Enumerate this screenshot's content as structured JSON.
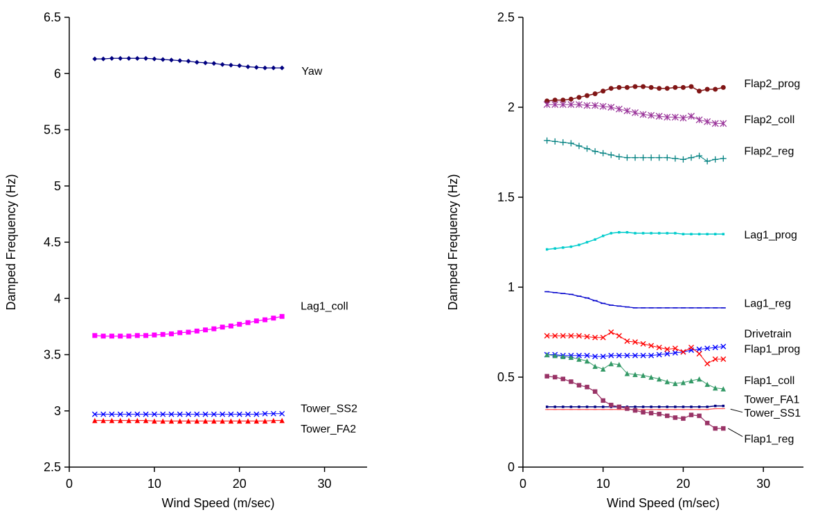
{
  "chart_data": [
    {
      "type": "scatter",
      "title": "",
      "xlabel": "Wind Speed (m/sec)",
      "ylabel": "Damped Frequency (Hz)",
      "xlim": [
        0,
        35
      ],
      "ylim": [
        2.5,
        6.5
      ],
      "grid": false,
      "legend": "inline-labels",
      "xticks": [
        0,
        10,
        20,
        30
      ],
      "xtick_labels": [
        "0",
        "10",
        "20",
        "30"
      ],
      "yticks": [
        2.5,
        3,
        3.5,
        4,
        4.5,
        5,
        5.5,
        6,
        6.5
      ],
      "ytick_labels": [
        "2.5",
        "3",
        "3.5",
        "4",
        "4.5",
        "5",
        "5.5",
        "6",
        "6.5"
      ],
      "x": [
        3,
        4,
        5,
        6,
        7,
        8,
        9,
        10,
        11,
        12,
        13,
        14,
        15,
        16,
        17,
        18,
        19,
        20,
        21,
        22,
        23,
        24,
        25
      ],
      "series": [
        {
          "name": "Yaw",
          "color": "#000080",
          "marker": "diamond",
          "msize": 7,
          "lwidth": 1.25,
          "values": [
            6.13,
            6.13,
            6.135,
            6.135,
            6.135,
            6.135,
            6.135,
            6.13,
            6.125,
            6.12,
            6.115,
            6.11,
            6.1,
            6.095,
            6.09,
            6.08,
            6.075,
            6.07,
            6.06,
            6.055,
            6.05,
            6.05,
            6.05
          ],
          "label": {
            "text": "Yaw",
            "x": 27.3,
            "y": 6.02
          }
        },
        {
          "name": "Lag1_coll",
          "color": "#FF00FF",
          "marker": "square",
          "msize": 7,
          "lwidth": 1.25,
          "values": [
            3.67,
            3.665,
            3.665,
            3.665,
            3.665,
            3.67,
            3.67,
            3.675,
            3.68,
            3.685,
            3.695,
            3.7,
            3.71,
            3.72,
            3.73,
            3.745,
            3.755,
            3.77,
            3.785,
            3.8,
            3.81,
            3.825,
            3.84
          ],
          "label": {
            "text": "Lag1_coll",
            "x": 27.2,
            "y": 3.93
          }
        },
        {
          "name": "Tower_SS2",
          "color": "#0000FF",
          "marker": "x",
          "msize": 7,
          "mstroke": 1.4,
          "lwidth": 1,
          "values": [
            2.97,
            2.97,
            2.97,
            2.97,
            2.97,
            2.97,
            2.97,
            2.97,
            2.97,
            2.97,
            2.97,
            2.97,
            2.97,
            2.97,
            2.97,
            2.97,
            2.97,
            2.97,
            2.97,
            2.97,
            2.975,
            2.975,
            2.975
          ],
          "label": {
            "text": "Tower_SS2",
            "x": 27.2,
            "y": 3.02
          }
        },
        {
          "name": "Tower_FA2",
          "color": "#FF0000",
          "marker": "triangle",
          "msize": 7.5,
          "lwidth": 1,
          "values": [
            2.915,
            2.915,
            2.915,
            2.915,
            2.915,
            2.915,
            2.915,
            2.91,
            2.91,
            2.91,
            2.91,
            2.91,
            2.91,
            2.91,
            2.91,
            2.91,
            2.91,
            2.91,
            2.91,
            2.91,
            2.91,
            2.915,
            2.915
          ],
          "label": {
            "text": "Tower_FA2",
            "x": 27.2,
            "y": 2.84
          }
        }
      ]
    },
    {
      "type": "scatter",
      "title": "",
      "xlabel": "Wind Speed (m/sec)",
      "ylabel": "Damped Frequency (Hz)",
      "xlim": [
        0,
        35
      ],
      "ylim": [
        0,
        2.5
      ],
      "grid": false,
      "legend": "inline-labels",
      "xticks": [
        0,
        10,
        20,
        30
      ],
      "xtick_labels": [
        "0",
        "10",
        "20",
        "30"
      ],
      "yticks": [
        0,
        0.5,
        1,
        1.5,
        2,
        2.5
      ],
      "ytick_labels": [
        "0",
        "0.5",
        "1",
        "1.5",
        "2",
        "2.5"
      ],
      "x": [
        3,
        4,
        5,
        6,
        7,
        8,
        9,
        10,
        11,
        12,
        13,
        14,
        15,
        16,
        17,
        18,
        19,
        20,
        21,
        22,
        23,
        24,
        25
      ],
      "series": [
        {
          "name": "Flap2_prog",
          "color": "#801515",
          "marker": "circle",
          "msize": 7,
          "lwidth": 1.5,
          "values": [
            2.035,
            2.04,
            2.04,
            2.045,
            2.055,
            2.065,
            2.075,
            2.09,
            2.105,
            2.11,
            2.11,
            2.115,
            2.115,
            2.11,
            2.105,
            2.105,
            2.11,
            2.11,
            2.115,
            2.09,
            2.1,
            2.1,
            2.11
          ],
          "label": {
            "text": "Flap2_prog",
            "x": 27.6,
            "y": 2.13
          }
        },
        {
          "name": "Flap2_coll",
          "color": "#993399",
          "marker": "asterisk",
          "msize": 9,
          "mstroke": 1.3,
          "lwidth": 1,
          "values": [
            2.015,
            2.015,
            2.015,
            2.015,
            2.015,
            2.01,
            2.01,
            2.005,
            2.0,
            1.99,
            1.98,
            1.97,
            1.96,
            1.955,
            1.95,
            1.945,
            1.945,
            1.94,
            1.95,
            1.93,
            1.92,
            1.91,
            1.91
          ],
          "label": {
            "text": "Flap2_coll",
            "x": 27.6,
            "y": 1.93
          }
        },
        {
          "name": "Flap2_reg",
          "color": "#008080",
          "marker": "plus",
          "msize": 9,
          "mstroke": 1.3,
          "lwidth": 1,
          "values": [
            1.815,
            1.81,
            1.805,
            1.8,
            1.785,
            1.77,
            1.755,
            1.745,
            1.735,
            1.725,
            1.72,
            1.72,
            1.72,
            1.72,
            1.72,
            1.72,
            1.715,
            1.71,
            1.72,
            1.73,
            1.7,
            1.71,
            1.715
          ],
          "label": {
            "text": "Flap2_reg",
            "x": 27.6,
            "y": 1.755
          }
        },
        {
          "name": "Lag1_prog",
          "color": "#00CCCC",
          "marker": "square",
          "msize": 3.5,
          "lwidth": 1.5,
          "values": [
            1.21,
            1.215,
            1.22,
            1.225,
            1.235,
            1.25,
            1.265,
            1.285,
            1.3,
            1.305,
            1.305,
            1.3,
            1.3,
            1.3,
            1.3,
            1.3,
            1.3,
            1.295,
            1.295,
            1.295,
            1.295,
            1.295,
            1.295
          ],
          "label": {
            "text": "Lag1_prog",
            "x": 27.6,
            "y": 1.29
          }
        },
        {
          "name": "Lag1_reg",
          "color": "#0000CC",
          "marker": "dash",
          "msize": 7,
          "mstroke": 1.6,
          "lwidth": 1.25,
          "values": [
            0.975,
            0.97,
            0.965,
            0.96,
            0.95,
            0.94,
            0.925,
            0.91,
            0.9,
            0.895,
            0.89,
            0.885,
            0.885,
            0.885,
            0.885,
            0.885,
            0.885,
            0.885,
            0.885,
            0.885,
            0.885,
            0.885,
            0.885
          ],
          "label": {
            "text": "Lag1_reg",
            "x": 27.6,
            "y": 0.91
          }
        },
        {
          "name": "Drivetrain",
          "color": "#0000FF",
          "marker": "x",
          "msize": 7,
          "mstroke": 1.4,
          "lwidth": 1,
          "values": [
            0.625,
            0.625,
            0.62,
            0.62,
            0.62,
            0.62,
            0.615,
            0.615,
            0.62,
            0.62,
            0.62,
            0.62,
            0.62,
            0.62,
            0.625,
            0.63,
            0.635,
            0.64,
            0.65,
            0.655,
            0.66,
            0.665,
            0.67
          ],
          "label": {
            "text": "Drivetrain",
            "x": 27.6,
            "y": 0.74
          }
        },
        {
          "name": "Flap1_prog",
          "color": "#FF0000",
          "marker": "x",
          "msize": 7,
          "mstroke": 1.4,
          "lwidth": 1,
          "values": [
            0.73,
            0.73,
            0.73,
            0.73,
            0.73,
            0.725,
            0.72,
            0.72,
            0.75,
            0.73,
            0.7,
            0.695,
            0.685,
            0.675,
            0.665,
            0.655,
            0.66,
            0.64,
            0.665,
            0.63,
            0.575,
            0.6,
            0.6
          ],
          "label": {
            "text": "Flap1_prog",
            "x": 27.6,
            "y": 0.655
          }
        },
        {
          "name": "Flap1_coll",
          "color": "#339966",
          "marker": "triangle",
          "msize": 7.5,
          "lwidth": 1,
          "values": [
            0.625,
            0.62,
            0.615,
            0.61,
            0.6,
            0.59,
            0.56,
            0.545,
            0.575,
            0.57,
            0.52,
            0.515,
            0.51,
            0.5,
            0.49,
            0.475,
            0.465,
            0.47,
            0.48,
            0.49,
            0.46,
            0.44,
            0.435
          ],
          "label": {
            "text": "Flap1_coll",
            "x": 27.6,
            "y": 0.48
          }
        },
        {
          "name": "Tower_FA1",
          "color": "#000080",
          "marker": "square",
          "msize": 3.5,
          "lwidth": 1.5,
          "values": [
            0.335,
            0.335,
            0.335,
            0.335,
            0.335,
            0.335,
            0.335,
            0.335,
            0.335,
            0.335,
            0.335,
            0.335,
            0.335,
            0.335,
            0.335,
            0.335,
            0.335,
            0.335,
            0.335,
            0.335,
            0.335,
            0.34,
            0.34
          ],
          "label": {
            "text": "Tower_FA1",
            "x": 27.6,
            "y": 0.375
          }
        },
        {
          "name": "Tower_SS1",
          "color": "#FF5050",
          "marker": "dash",
          "msize": 5,
          "mstroke": 1.2,
          "lwidth": 1.25,
          "values": [
            0.32,
            0.32,
            0.32,
            0.32,
            0.32,
            0.32,
            0.32,
            0.32,
            0.32,
            0.32,
            0.32,
            0.32,
            0.32,
            0.32,
            0.32,
            0.32,
            0.32,
            0.32,
            0.32,
            0.32,
            0.32,
            0.325,
            0.325
          ],
          "label": {
            "text": "Tower_SS1",
            "x": 27.6,
            "y": 0.3
          },
          "leader": [
            [
              27.4,
              0.305
            ],
            [
              25.9,
              0.322
            ]
          ]
        },
        {
          "name": "Flap1_reg",
          "color": "#993366",
          "marker": "square",
          "msize": 6.5,
          "lwidth": 1.25,
          "values": [
            0.505,
            0.5,
            0.49,
            0.475,
            0.455,
            0.445,
            0.42,
            0.37,
            0.345,
            0.335,
            0.325,
            0.315,
            0.305,
            0.3,
            0.295,
            0.285,
            0.275,
            0.27,
            0.29,
            0.285,
            0.245,
            0.215,
            0.215
          ],
          "label": {
            "text": "Flap1_reg",
            "x": 27.6,
            "y": 0.155
          },
          "leader": [
            [
              27.4,
              0.17
            ],
            [
              25.6,
              0.215
            ]
          ]
        }
      ]
    }
  ]
}
